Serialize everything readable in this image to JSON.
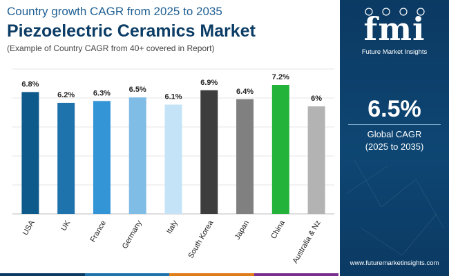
{
  "header": {
    "subtitle": "Country growth CAGR from 2025 to 2035",
    "title": "Piezoelectric Ceramics Market",
    "note": "(Example of Country CAGR from 40+ covered in Report)"
  },
  "sidebar": {
    "logo_mark": "fmi",
    "logo_text": "Future Market Insights",
    "global_value": "6.5%",
    "global_label_line1": "Global CAGR",
    "global_label_line2": "(2025 to 2035)",
    "website": "www.futuremarketinsights.com"
  },
  "colors": {
    "sidebar_bg": "#0b3a63",
    "title": "#0c3d66",
    "subtitle": "#1f5f93"
  },
  "chart_data": {
    "type": "bar",
    "categories": [
      "USA",
      "UK",
      "France",
      "Germany",
      "Italy",
      "South Korea",
      "Japan",
      "China",
      "Australia & Nz"
    ],
    "values": [
      6.8,
      6.2,
      6.3,
      6.5,
      6.1,
      6.9,
      6.4,
      7.2,
      6.0
    ],
    "data_labels": [
      "6.8%",
      "6.2%",
      "6.3%",
      "6.5%",
      "6.1%",
      "6.9%",
      "6.4%",
      "7.2%",
      "6%"
    ],
    "bar_colors": [
      "#0e5a8a",
      "#1f73ad",
      "#3495d6",
      "#7fbce6",
      "#c5e3f6",
      "#3d3d3d",
      "#808080",
      "#23b33a",
      "#b3b3b3"
    ],
    "ylim": [
      0,
      7.2
    ],
    "grid": true,
    "title": "",
    "xlabel": "",
    "ylabel": ""
  }
}
